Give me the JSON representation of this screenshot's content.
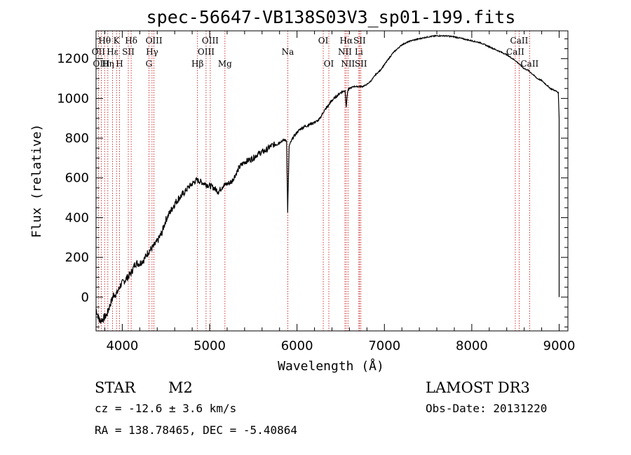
{
  "chart_data": {
    "type": "line",
    "title": "spec-56647-VB138S03V3_sp01-199.fits",
    "xlabel": "Wavelength (Å)",
    "ylabel": "Flux (relative)",
    "xlim": [
      3700,
      9100
    ],
    "ylim": [
      -170,
      1340
    ],
    "xticks": [
      4000,
      5000,
      6000,
      7000,
      8000,
      9000
    ],
    "yticks": [
      0,
      200,
      400,
      600,
      800,
      1000,
      1200
    ],
    "colors": {
      "spectrum": "#000000",
      "line_markers": "#c00000",
      "axes": "#000000"
    },
    "spectrum": {
      "x": [
        3700,
        3740,
        3780,
        3820,
        3860,
        3900,
        3940,
        3980,
        4020,
        4060,
        4100,
        4150,
        4200,
        4250,
        4300,
        4350,
        4400,
        4450,
        4500,
        4550,
        4600,
        4650,
        4700,
        4750,
        4800,
        4850,
        4900,
        4950,
        5000,
        5050,
        5100,
        5150,
        5200,
        5250,
        5300,
        5350,
        5400,
        5450,
        5500,
        5550,
        5600,
        5650,
        5700,
        5750,
        5800,
        5850,
        5880,
        5893,
        5910,
        5950,
        6000,
        6050,
        6100,
        6150,
        6200,
        6250,
        6300,
        6350,
        6400,
        6450,
        6500,
        6550,
        6563,
        6580,
        6600,
        6650,
        6700,
        6750,
        6800,
        6850,
        6900,
        6950,
        7000,
        7050,
        7100,
        7150,
        7200,
        7300,
        7400,
        7500,
        7600,
        7700,
        7800,
        7900,
        8000,
        8100,
        8200,
        8300,
        8400,
        8500,
        8550,
        8600,
        8650,
        8700,
        8750,
        8800,
        8850,
        8900,
        8950,
        8990,
        9000,
        9000
      ],
      "y": [
        -60,
        -120,
        -110,
        -90,
        -40,
        10,
        20,
        60,
        80,
        100,
        120,
        170,
        170,
        190,
        230,
        250,
        280,
        320,
        390,
        430,
        470,
        500,
        520,
        550,
        570,
        590,
        580,
        570,
        560,
        550,
        530,
        560,
        570,
        580,
        620,
        660,
        680,
        690,
        700,
        720,
        730,
        740,
        760,
        770,
        780,
        790,
        790,
        430,
        760,
        800,
        830,
        850,
        860,
        870,
        880,
        890,
        930,
        960,
        990,
        1010,
        1030,
        1040,
        960,
        1040,
        1050,
        1060,
        1060,
        1060,
        1070,
        1090,
        1120,
        1140,
        1170,
        1200,
        1230,
        1250,
        1270,
        1290,
        1300,
        1310,
        1315,
        1315,
        1310,
        1300,
        1290,
        1280,
        1260,
        1240,
        1220,
        1190,
        1170,
        1150,
        1140,
        1120,
        1100,
        1090,
        1070,
        1050,
        1040,
        1030,
        900,
        0
      ]
    },
    "lines": [
      {
        "label": "Hθ",
        "wavelength": 3798,
        "row": 1
      },
      {
        "label": "OII",
        "wavelength": 3727,
        "row": 2
      },
      {
        "label": "OIII",
        "wavelength": 3760,
        "row": 3
      },
      {
        "label": "Hη",
        "wavelength": 3835,
        "row": 3
      },
      {
        "label": "Hε",
        "wavelength": 3889,
        "row": 2
      },
      {
        "label": "K",
        "wavelength": 3934,
        "row": 1
      },
      {
        "label": "H",
        "wavelength": 3969,
        "row": 3
      },
      {
        "label": "SII",
        "wavelength": 4069,
        "row": 2
      },
      {
        "label": "Hδ",
        "wavelength": 4102,
        "row": 1
      },
      {
        "label": "OIII",
        "wavelength": 4363,
        "row": 1
      },
      {
        "label": "Hγ",
        "wavelength": 4341,
        "row": 2
      },
      {
        "label": "G",
        "wavelength": 4305,
        "row": 3
      },
      {
        "label": "Hβ",
        "wavelength": 4861,
        "row": 3
      },
      {
        "label": "OIII",
        "wavelength": 5007,
        "row": 1
      },
      {
        "label": "OIII",
        "wavelength": 4959,
        "row": 2
      },
      {
        "label": "Mg",
        "wavelength": 5175,
        "row": 3
      },
      {
        "label": "Na",
        "wavelength": 5894,
        "row": 2
      },
      {
        "label": "OI",
        "wavelength": 6300,
        "row": 1
      },
      {
        "label": "OI",
        "wavelength": 6364,
        "row": 3
      },
      {
        "label": "Hα",
        "wavelength": 6563,
        "row": 1
      },
      {
        "label": "NII",
        "wavelength": 6548,
        "row": 2
      },
      {
        "label": "NII",
        "wavelength": 6583,
        "row": 3
      },
      {
        "label": "SII",
        "wavelength": 6716,
        "row": 1
      },
      {
        "label": "Li",
        "wavelength": 6708,
        "row": 2
      },
      {
        "label": "SII",
        "wavelength": 6731,
        "row": 3
      },
      {
        "label": "CaII",
        "wavelength": 8542,
        "row": 1
      },
      {
        "label": "CaII",
        "wavelength": 8498,
        "row": 2
      },
      {
        "label": "CaII",
        "wavelength": 8662,
        "row": 3
      }
    ]
  },
  "info": {
    "object_class": "STAR",
    "subclass": "M2",
    "survey": "LAMOST DR3",
    "redshift": "cz = -12.6 ± 3.6 km/s",
    "obs_date": "Obs-Date: 20131220",
    "coords": "RA = 138.78465, DEC =  -5.40864"
  }
}
